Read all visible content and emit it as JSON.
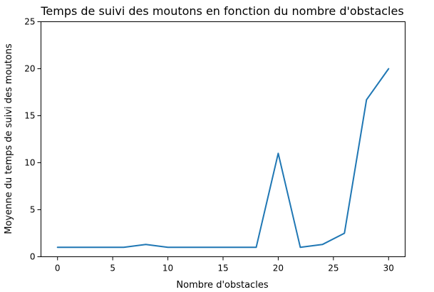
{
  "chart_data": {
    "type": "line",
    "title": "Temps de suivi des moutons en fonction du nombre d'obstacles",
    "xlabel": "Nombre d'obstacles",
    "ylabel": "Moyenne du temps de suivi des moutons",
    "xlim": [
      -1.5,
      31.5
    ],
    "ylim": [
      0,
      25
    ],
    "x_ticks": [
      0,
      5,
      10,
      15,
      20,
      25,
      30
    ],
    "y_ticks": [
      0,
      5,
      10,
      15,
      20,
      25
    ],
    "grid": false,
    "series": [
      {
        "color": "#1f77b4",
        "x": [
          0,
          2,
          4,
          6,
          8,
          10,
          12,
          14,
          16,
          18,
          20,
          22,
          24,
          26,
          28,
          30
        ],
        "y": [
          1,
          1,
          1,
          1,
          1.3,
          1,
          1,
          1,
          1,
          1,
          11,
          1,
          1.3,
          2.5,
          16.7,
          20
        ]
      }
    ]
  }
}
